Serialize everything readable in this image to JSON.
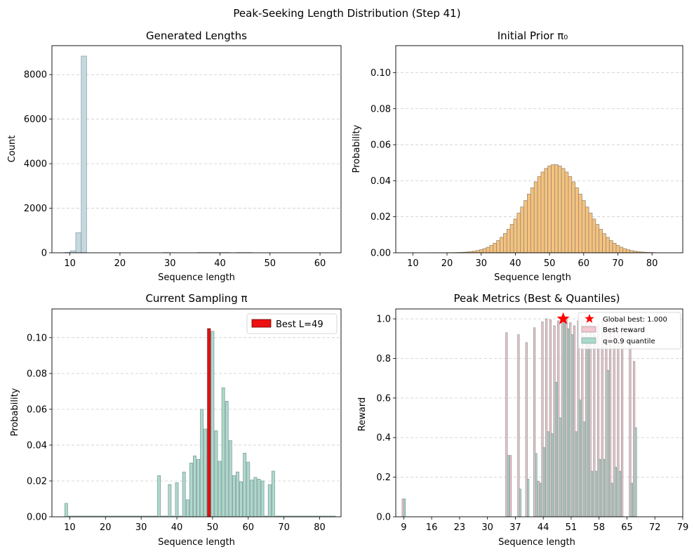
{
  "figure": {
    "title": "Peak-Seeking Length Distribution (Step 41)"
  },
  "chart_data": [
    {
      "id": "generated",
      "type": "bar",
      "title": "Generated Lengths",
      "xlabel": "Sequence length",
      "ylabel": "Count",
      "xlim": [
        6.4,
        64.2
      ],
      "ylim": [
        0,
        9300
      ],
      "xticks": [
        10,
        20,
        30,
        40,
        50,
        60
      ],
      "yticks": [
        0,
        2000,
        4000,
        6000,
        8000
      ],
      "grid": "y-dashed",
      "colors": {
        "fill": "#c5d8df",
        "edge": "#8fa3ab"
      },
      "bin_width": 1.07,
      "x": [
        9.5,
        10.6,
        11.7,
        12.8,
        29.2,
        36.0,
        37.1,
        38.2,
        39.3,
        40.4,
        41.5,
        43.7,
        44.8,
        45.9
      ],
      "values": [
        15,
        90,
        900,
        8830,
        10,
        10,
        10,
        10,
        10,
        10,
        10,
        10,
        10,
        10
      ]
    },
    {
      "id": "prior",
      "type": "bar",
      "title": "Initial Prior π₀",
      "xlabel": "Sequence length",
      "ylabel": "Probability",
      "xlim": [
        5,
        89
      ],
      "ylim": [
        0,
        0.115
      ],
      "xticks": [
        10,
        20,
        30,
        40,
        50,
        60,
        70,
        80
      ],
      "yticks": [
        "0.00",
        "0.02",
        "0.04",
        "0.06",
        "0.08",
        "0.10"
      ],
      "grid": "y-dashed",
      "colors": {
        "fill": "#f5c27e",
        "edge": "#9a8a72"
      },
      "distribution": {
        "mean": 51.5,
        "sd": 8.3,
        "peak": 0.049,
        "x_range": [
          15,
          80
        ]
      }
    },
    {
      "id": "current",
      "type": "bar",
      "title": "Current Sampling π",
      "xlabel": "Sequence length",
      "ylabel": "Probability",
      "xlim": [
        5,
        86
      ],
      "ylim": [
        0,
        0.116
      ],
      "xticks": [
        10,
        20,
        30,
        40,
        50,
        60,
        70,
        80
      ],
      "yticks": [
        "0.00",
        "0.02",
        "0.04",
        "0.06",
        "0.08",
        "0.10"
      ],
      "grid": "y-dashed",
      "legend": {
        "placement": "top-right",
        "label": "Best L=49"
      },
      "colors": {
        "fill": "#aed9ce",
        "edge": "#7f9f98",
        "best": "#ee1111",
        "best_edge": "#660000"
      },
      "best_length": 49,
      "best_value": 0.105,
      "x": [
        9,
        35,
        38,
        40,
        42,
        43,
        44,
        45,
        46,
        47,
        48,
        50,
        51,
        52,
        53,
        54,
        55,
        56,
        57,
        58,
        59,
        60,
        61,
        62,
        63,
        64,
        66,
        67
      ],
      "values": [
        0.0075,
        0.023,
        0.018,
        0.019,
        0.025,
        0.0095,
        0.03,
        0.034,
        0.032,
        0.06,
        0.049,
        0.1035,
        0.048,
        0.031,
        0.072,
        0.0645,
        0.0425,
        0.023,
        0.025,
        0.0195,
        0.0355,
        0.0305,
        0.0205,
        0.022,
        0.021,
        0.02,
        0.018,
        0.0255
      ]
    },
    {
      "id": "peak",
      "type": "bar",
      "title": "Peak Metrics (Best & Quantiles)",
      "xlabel": "Sequence length",
      "ylabel": "Reward",
      "xlim": [
        7,
        79
      ],
      "ylim": [
        0,
        1.05
      ],
      "xticks": [
        9,
        16,
        23,
        30,
        37,
        44,
        51,
        58,
        65,
        72,
        79
      ],
      "yticks": [
        "0.0",
        "0.2",
        "0.4",
        "0.6",
        "0.8",
        "1.0"
      ],
      "grid": "y-dashed",
      "legend": {
        "placement": "top-right"
      },
      "colors": {
        "best_reward": "#f4c6cf",
        "quantile": "#aad9cc",
        "star": "#ff0000"
      },
      "star": {
        "x": 49,
        "y": 1.0,
        "label": "Global best: 1.000"
      },
      "series": [
        {
          "name": "Best reward",
          "x": [
            9,
            35,
            36,
            38,
            40,
            42,
            43,
            44,
            45,
            46,
            47,
            48,
            49,
            50,
            51,
            52,
            53,
            54,
            55,
            56,
            57,
            58,
            59,
            60,
            61,
            62,
            63,
            64,
            66,
            67
          ],
          "values": [
            0.09,
            0.93,
            0.31,
            0.92,
            0.88,
            0.955,
            0.18,
            0.985,
            1.0,
            0.995,
            0.965,
            0.99,
            1.0,
            1.0,
            0.98,
            0.965,
            0.99,
            0.995,
            0.98,
            0.97,
            0.925,
            0.975,
            0.995,
            0.995,
            0.95,
            0.97,
            0.945,
            0.965,
            0.985,
            0.785
          ]
        },
        {
          "name": "q=0.9 quantile",
          "x": [
            9,
            35,
            36,
            38,
            40,
            42,
            43,
            44,
            45,
            46,
            47,
            48,
            49,
            50,
            51,
            52,
            53,
            54,
            55,
            56,
            57,
            58,
            59,
            60,
            61,
            62,
            63,
            64,
            66,
            67
          ],
          "values": [
            0.09,
            0.31,
            0.0,
            0.14,
            0.19,
            0.32,
            0.17,
            0.35,
            0.43,
            0.42,
            0.68,
            0.5,
            1.0,
            0.95,
            0.92,
            0.43,
            0.59,
            0.48,
            0.87,
            0.23,
            0.23,
            0.29,
            0.29,
            0.74,
            0.17,
            0.25,
            0.23,
            0.0,
            0.17,
            0.45
          ]
        }
      ]
    }
  ]
}
